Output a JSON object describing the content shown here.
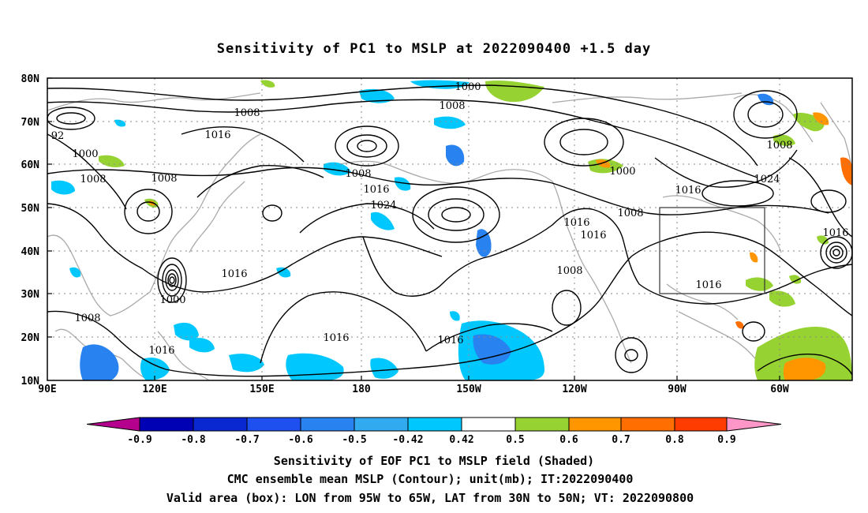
{
  "title": "Sensitivity of PC1 to MSLP at 2022090400 +1.5 day",
  "map": {
    "y_ticks": [
      "80N",
      "70N",
      "60N",
      "50N",
      "40N",
      "30N",
      "20N",
      "10N"
    ],
    "x_ticks": [
      "90E",
      "120E",
      "150E",
      "180",
      "150W",
      "120W",
      "90W",
      "60W"
    ],
    "lon_range": "90E to 30W (eastward)",
    "lat_range": [
      10,
      80
    ],
    "grid": "dotted",
    "valid_box": {
      "lon": [
        "95W",
        "65W"
      ],
      "lat": [
        "30N",
        "50N"
      ]
    }
  },
  "contour_labels": [
    {
      "id": "c1000a",
      "text": "1000"
    },
    {
      "id": "c1008a",
      "text": "1008"
    },
    {
      "id": "c1008b",
      "text": "1008"
    },
    {
      "id": "c92",
      "text": "92"
    },
    {
      "id": "c1000b",
      "text": "1000"
    },
    {
      "id": "c1008c",
      "text": "1008"
    },
    {
      "id": "c1016a",
      "text": "1016"
    },
    {
      "id": "c1008d",
      "text": "1008"
    },
    {
      "id": "c1016b",
      "text": "1016"
    },
    {
      "id": "c1024a",
      "text": "1024"
    },
    {
      "id": "c1008e",
      "text": "1008"
    },
    {
      "id": "c1000c",
      "text": "1000"
    },
    {
      "id": "c1016c",
      "text": "1016"
    },
    {
      "id": "c1024b",
      "text": "1024"
    },
    {
      "id": "c1008f",
      "text": "1008"
    },
    {
      "id": "c1016d",
      "text": "1016"
    },
    {
      "id": "c1016e",
      "text": "1016"
    },
    {
      "id": "c1016f",
      "text": "1016"
    },
    {
      "id": "c1008g",
      "text": "1008"
    },
    {
      "id": "c1016g",
      "text": "1016"
    },
    {
      "id": "c1016h",
      "text": "1016"
    },
    {
      "id": "c1000d",
      "text": "1000"
    },
    {
      "id": "c1008h",
      "text": "1008"
    },
    {
      "id": "c1008i",
      "text": "1008"
    },
    {
      "id": "c1016i",
      "text": "1016"
    },
    {
      "id": "c1016j",
      "text": "1016"
    },
    {
      "id": "c1016k",
      "text": "1016"
    }
  ],
  "colorbar": {
    "labels": [
      "-0.9",
      "-0.8",
      "-0.7",
      "-0.6",
      "-0.5",
      "-0.42",
      "0.42",
      "0.5",
      "0.6",
      "0.7",
      "0.8",
      "0.9"
    ],
    "colors": [
      "#b4008c",
      "#0000b4",
      "#0a28d2",
      "#1e50f0",
      "#2882f0",
      "#32aaf0",
      "#00c8ff",
      "#ffffff",
      "#96d232",
      "#ff9600",
      "#ff6e00",
      "#ff3c00",
      "#ff0000",
      "#ff96c8"
    ]
  },
  "caption": {
    "line1": "Sensitivity of EOF PC1 to MSLP field (Shaded)",
    "line2": "CMC ensemble mean MSLP (Contour); unit(mb); IT:2022090400",
    "line3": "Valid area (box): LON from 95W to 65W, LAT from 30N to 50N; VT: 2022090800"
  }
}
